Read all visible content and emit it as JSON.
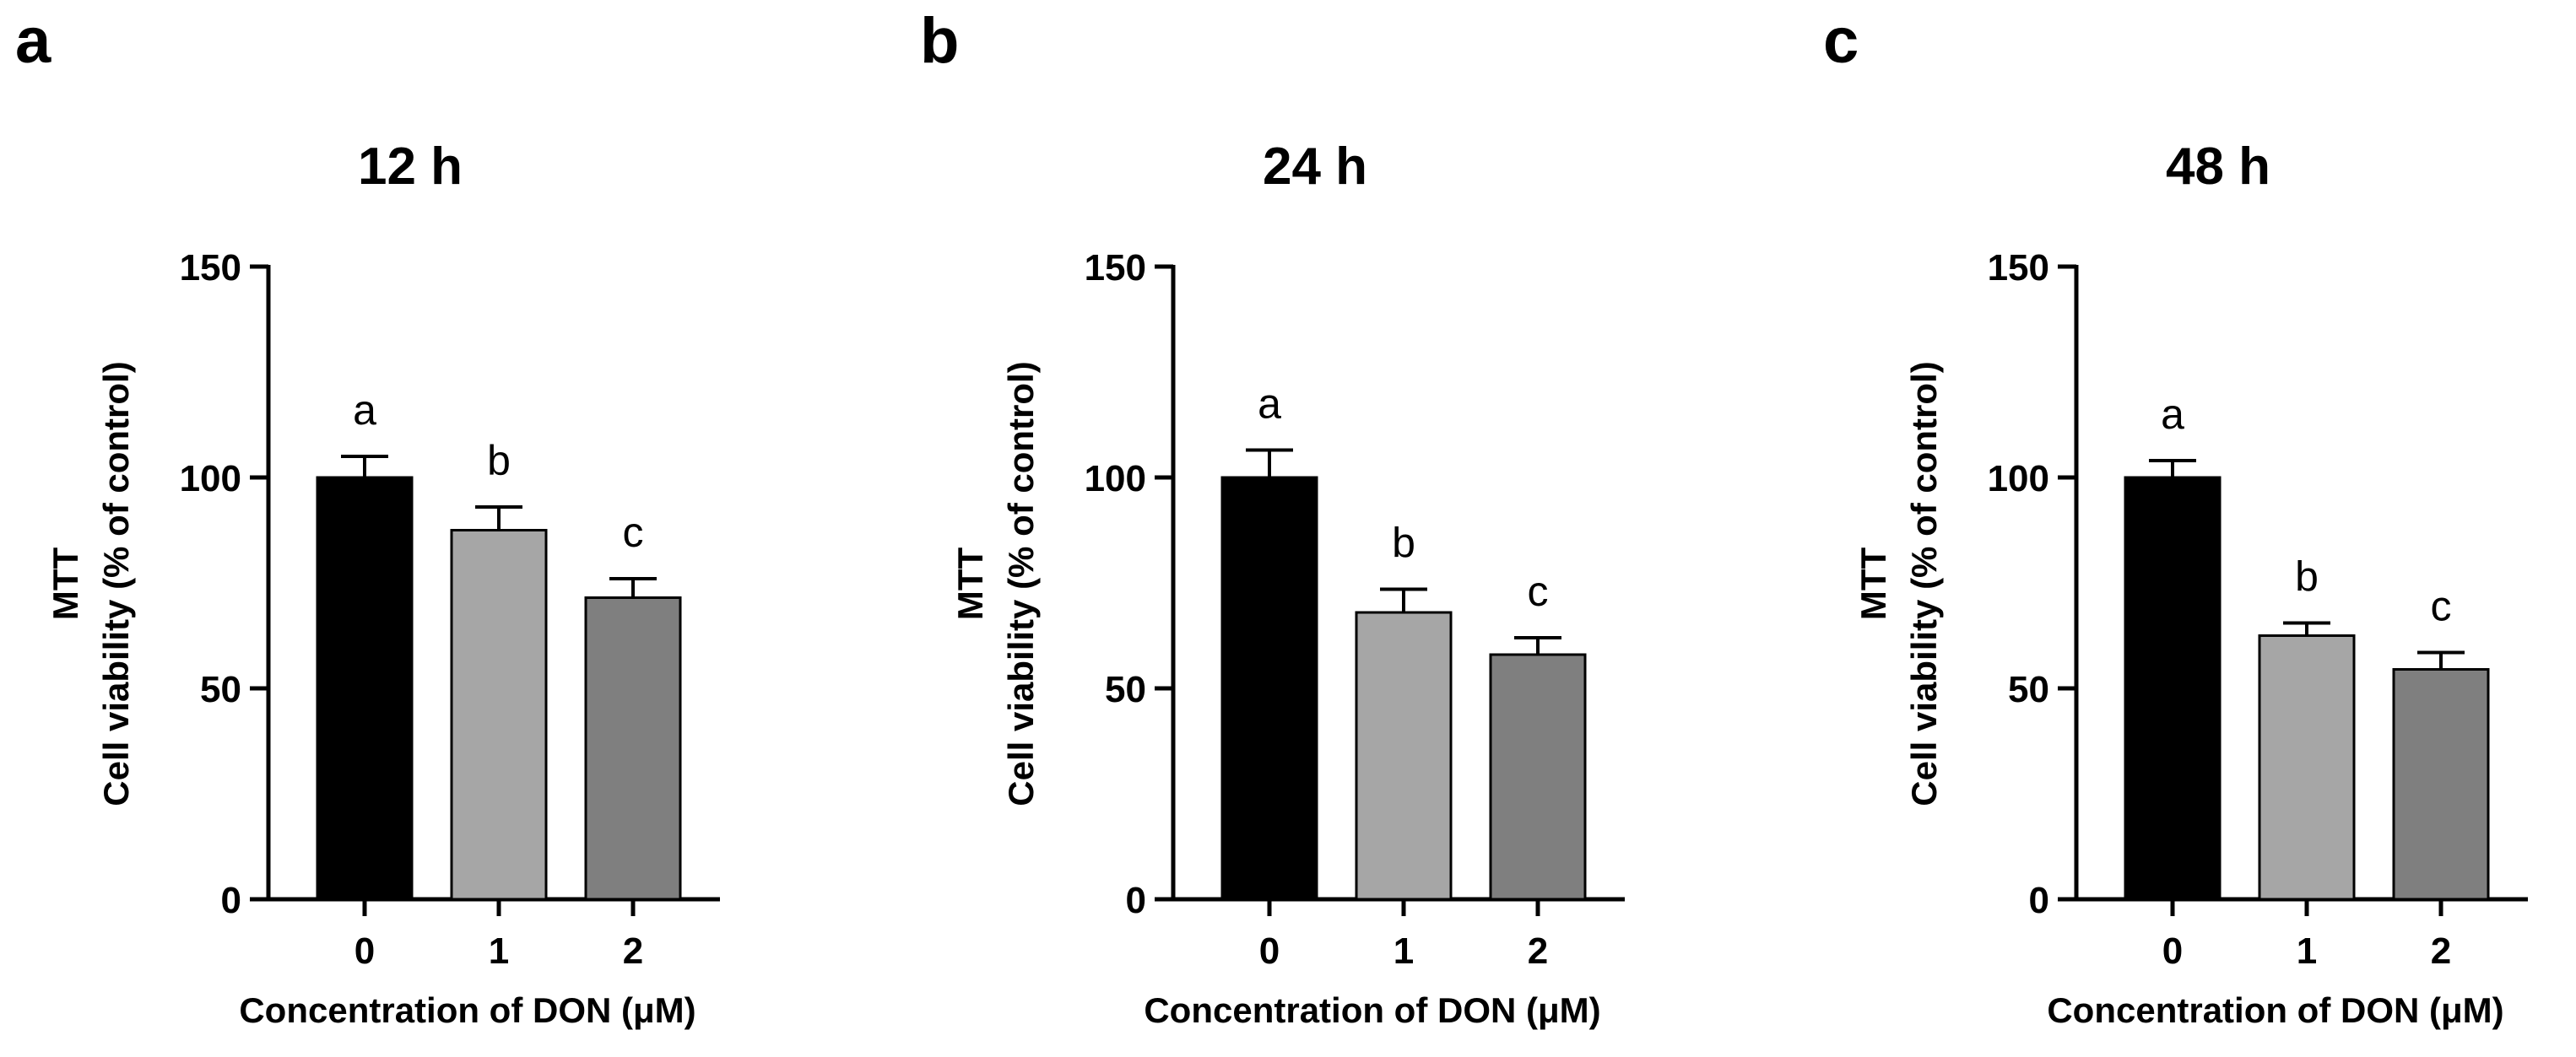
{
  "chart_data": [
    {
      "panel": "a",
      "type": "bar",
      "title": "12 h",
      "xlabel": "Concentration of DON (μM)",
      "ylabel": [
        "MTT",
        "Cell viability (% of  control)"
      ],
      "ylim": [
        0,
        150
      ],
      "yticks": [
        0,
        50,
        100,
        150
      ],
      "categories": [
        "0",
        "1",
        "2"
      ],
      "values": [
        100,
        87.5,
        71.5
      ],
      "errors": [
        5,
        5.5,
        4.5
      ],
      "significance": [
        "a",
        "b",
        "c"
      ],
      "colors": [
        "#000000",
        "#a6a6a6",
        "#7f7f7f"
      ]
    },
    {
      "panel": "b",
      "type": "bar",
      "title": "24 h",
      "xlabel": "Concentration of DON (μM)",
      "ylabel": [
        "MTT",
        "Cell viability (% of  control)"
      ],
      "ylim": [
        0,
        150
      ],
      "yticks": [
        0,
        50,
        100,
        150
      ],
      "categories": [
        "0",
        "1",
        "2"
      ],
      "values": [
        100,
        68,
        58
      ],
      "errors": [
        6.5,
        5.5,
        4
      ],
      "significance": [
        "a",
        "b",
        "c"
      ],
      "colors": [
        "#000000",
        "#a6a6a6",
        "#7f7f7f"
      ]
    },
    {
      "panel": "c",
      "type": "bar",
      "title": "48 h",
      "xlabel": "Concentration of DON (μM)",
      "ylabel": [
        "MTT",
        "Cell viability (% of  control)"
      ],
      "ylim": [
        0,
        150
      ],
      "yticks": [
        0,
        50,
        100,
        150
      ],
      "categories": [
        "0",
        "1",
        "2"
      ],
      "values": [
        100,
        62.5,
        54.5
      ],
      "errors": [
        4,
        3,
        4
      ],
      "significance": [
        "a",
        "b",
        "c"
      ],
      "colors": [
        "#000000",
        "#a6a6a6",
        "#7f7f7f"
      ]
    }
  ]
}
